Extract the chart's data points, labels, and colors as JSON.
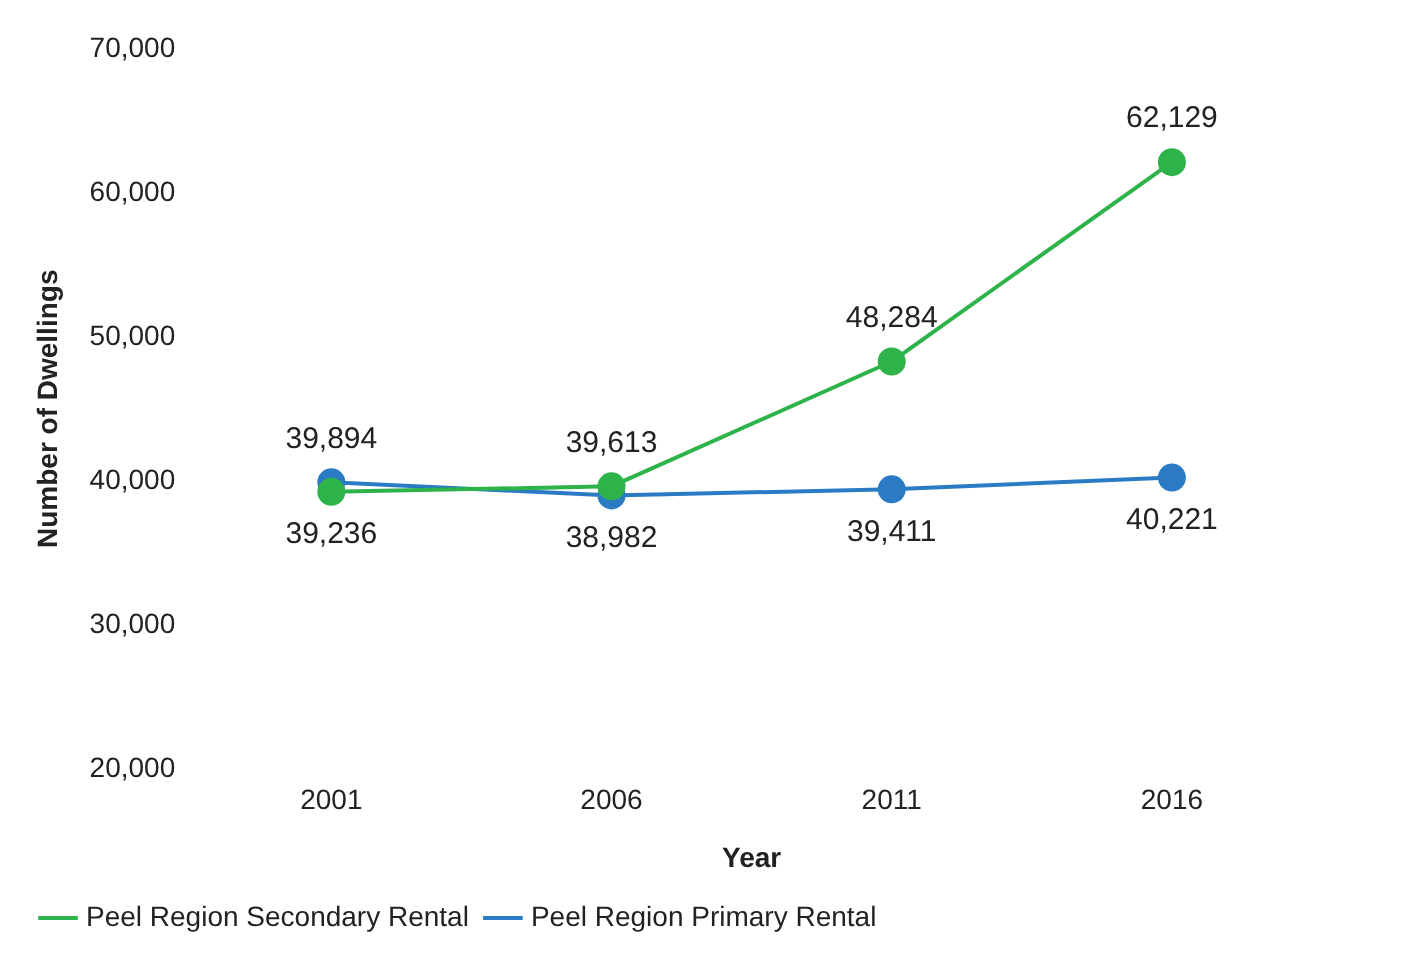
{
  "chart_data": {
    "type": "line",
    "xlabel": "Year",
    "ylabel": "Number of Dwellings",
    "categories": [
      "2001",
      "2006",
      "2011",
      "2016"
    ],
    "series": [
      {
        "name": "Peel Region Secondary Rental",
        "color": "#2db34a",
        "values": [
          39236,
          39613,
          48284,
          62129
        ],
        "value_labels": [
          "39,236",
          "39,613",
          "48,284",
          "62,129"
        ]
      },
      {
        "name": "Peel Region Primary Rental",
        "color": "#2a7bc4",
        "values": [
          39894,
          38982,
          39411,
          40221
        ],
        "value_labels": [
          "39,894",
          "38,982",
          "39,411",
          "40,221"
        ]
      }
    ],
    "ylim": [
      20000,
      70000
    ],
    "yticks": [
      {
        "value": 20000,
        "label": "20,000"
      },
      {
        "value": 30000,
        "label": "30,000"
      },
      {
        "value": 40000,
        "label": "40,000"
      },
      {
        "value": 50000,
        "label": "50,000"
      },
      {
        "value": 60000,
        "label": "60,000"
      },
      {
        "value": 70000,
        "label": "70,000"
      }
    ],
    "grid": false,
    "legend": "bottom",
    "marker": "circle",
    "line_style": "solid"
  }
}
